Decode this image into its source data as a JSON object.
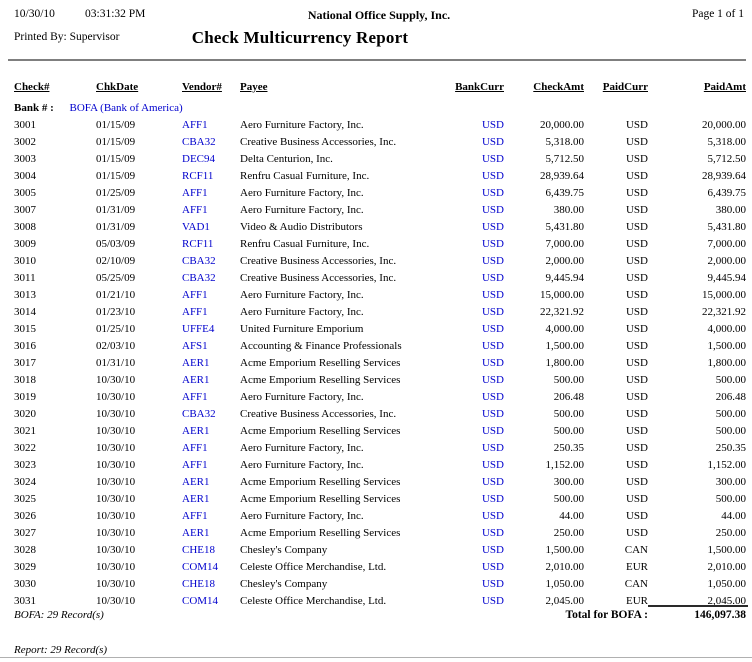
{
  "colors": {
    "link_blue": "#0000cd"
  },
  "page": {
    "date": "10/30/10",
    "time": "03:31:32 PM",
    "company": "National Office Supply, Inc.",
    "page_label": "Page 1 of 1",
    "printed_by": "Printed By: Supervisor",
    "title": "Check Multicurrency Report"
  },
  "table": {
    "columns": [
      "Check#",
      "ChkDate",
      "Vendor#",
      "Payee",
      "BankCurr",
      "CheckAmt",
      "PaidCurr",
      "PaidAmt"
    ],
    "bank_label": "Bank # :",
    "bank_value": "BOFA (Bank of America)",
    "rows": [
      [
        "3001",
        "01/15/09",
        "AFF1",
        "Aero Furniture Factory, Inc.",
        "USD",
        "20,000.00",
        "USD",
        "20,000.00"
      ],
      [
        "3002",
        "01/15/09",
        "CBA32",
        "Creative Business Accessories, Inc.",
        "USD",
        "5,318.00",
        "USD",
        "5,318.00"
      ],
      [
        "3003",
        "01/15/09",
        "DEC94",
        "Delta Centurion, Inc.",
        "USD",
        "5,712.50",
        "USD",
        "5,712.50"
      ],
      [
        "3004",
        "01/15/09",
        "RCF11",
        "Renfru Casual Furniture, Inc.",
        "USD",
        "28,939.64",
        "USD",
        "28,939.64"
      ],
      [
        "3005",
        "01/25/09",
        "AFF1",
        "Aero Furniture Factory, Inc.",
        "USD",
        "6,439.75",
        "USD",
        "6,439.75"
      ],
      [
        "3007",
        "01/31/09",
        "AFF1",
        "Aero Furniture Factory, Inc.",
        "USD",
        "380.00",
        "USD",
        "380.00"
      ],
      [
        "3008",
        "01/31/09",
        "VAD1",
        "Video & Audio Distributors",
        "USD",
        "5,431.80",
        "USD",
        "5,431.80"
      ],
      [
        "3009",
        "05/03/09",
        "RCF11",
        "Renfru Casual Furniture, Inc.",
        "USD",
        "7,000.00",
        "USD",
        "7,000.00"
      ],
      [
        "3010",
        "02/10/09",
        "CBA32",
        "Creative Business Accessories, Inc.",
        "USD",
        "2,000.00",
        "USD",
        "2,000.00"
      ],
      [
        "3011",
        "05/25/09",
        "CBA32",
        "Creative Business Accessories, Inc.",
        "USD",
        "9,445.94",
        "USD",
        "9,445.94"
      ],
      [
        "3013",
        "01/21/10",
        "AFF1",
        "Aero Furniture Factory, Inc.",
        "USD",
        "15,000.00",
        "USD",
        "15,000.00"
      ],
      [
        "3014",
        "01/23/10",
        "AFF1",
        "Aero Furniture Factory, Inc.",
        "USD",
        "22,321.92",
        "USD",
        "22,321.92"
      ],
      [
        "3015",
        "01/25/10",
        "UFFE4",
        "United Furniture Emporium",
        "USD",
        "4,000.00",
        "USD",
        "4,000.00"
      ],
      [
        "3016",
        "02/03/10",
        "AFS1",
        "Accounting & Finance Professionals",
        "USD",
        "1,500.00",
        "USD",
        "1,500.00"
      ],
      [
        "3017",
        "01/31/10",
        "AER1",
        "Acme Emporium Reselling Services",
        "USD",
        "1,800.00",
        "USD",
        "1,800.00"
      ],
      [
        "3018",
        "10/30/10",
        "AER1",
        "Acme Emporium Reselling Services",
        "USD",
        "500.00",
        "USD",
        "500.00"
      ],
      [
        "3019",
        "10/30/10",
        "AFF1",
        "Aero Furniture Factory, Inc.",
        "USD",
        "206.48",
        "USD",
        "206.48"
      ],
      [
        "3020",
        "10/30/10",
        "CBA32",
        "Creative Business Accessories, Inc.",
        "USD",
        "500.00",
        "USD",
        "500.00"
      ],
      [
        "3021",
        "10/30/10",
        "AER1",
        "Acme Emporium Reselling Services",
        "USD",
        "500.00",
        "USD",
        "500.00"
      ],
      [
        "3022",
        "10/30/10",
        "AFF1",
        "Aero Furniture Factory, Inc.",
        "USD",
        "250.35",
        "USD",
        "250.35"
      ],
      [
        "3023",
        "10/30/10",
        "AFF1",
        "Aero Furniture Factory, Inc.",
        "USD",
        "1,152.00",
        "USD",
        "1,152.00"
      ],
      [
        "3024",
        "10/30/10",
        "AER1",
        "Acme Emporium Reselling Services",
        "USD",
        "300.00",
        "USD",
        "300.00"
      ],
      [
        "3025",
        "10/30/10",
        "AER1",
        "Acme Emporium Reselling Services",
        "USD",
        "500.00",
        "USD",
        "500.00"
      ],
      [
        "3026",
        "10/30/10",
        "AFF1",
        "Aero Furniture Factory, Inc.",
        "USD",
        "44.00",
        "USD",
        "44.00"
      ],
      [
        "3027",
        "10/30/10",
        "AER1",
        "Acme Emporium Reselling Services",
        "USD",
        "250.00",
        "USD",
        "250.00"
      ],
      [
        "3028",
        "10/30/10",
        "CHE18",
        "Chesley's Company",
        "USD",
        "1,500.00",
        "CAN",
        "1,500.00"
      ],
      [
        "3029",
        "10/30/10",
        "COM14",
        "Celeste Office Merchandise, Ltd.",
        "USD",
        "2,010.00",
        "EUR",
        "2,010.00"
      ],
      [
        "3030",
        "10/30/10",
        "CHE18",
        "Chesley's Company",
        "USD",
        "1,050.00",
        "CAN",
        "1,050.00"
      ],
      [
        "3031",
        "10/30/10",
        "COM14",
        "Celeste Office Merchandise, Ltd.",
        "USD",
        "2,045.00",
        "EUR",
        "2,045.00"
      ]
    ]
  },
  "summary": {
    "bank_records": "BOFA: 29 Record(s)",
    "total_label": "Total for BOFA :",
    "total_amount": "146,097.38",
    "report_records": "Report: 29 Record(s)"
  }
}
